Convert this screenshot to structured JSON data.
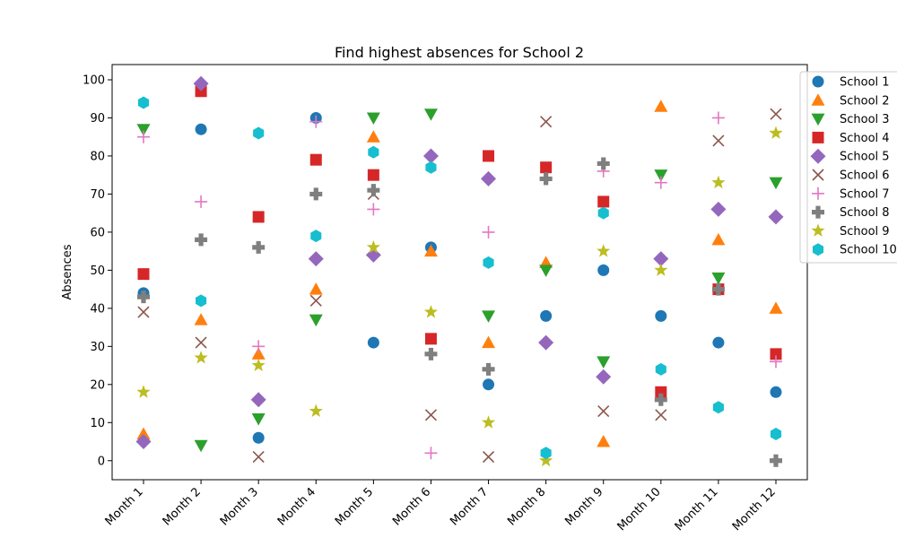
{
  "chart_data": {
    "type": "scatter",
    "title": "Find highest absences for School 2",
    "xlabel": "",
    "ylabel": "Absences",
    "ylim": [
      -5,
      104
    ],
    "yticks": [
      0,
      10,
      20,
      30,
      40,
      50,
      60,
      70,
      80,
      90,
      100
    ],
    "categories": [
      "Month 1",
      "Month 2",
      "Month 3",
      "Month 4",
      "Month 5",
      "Month 6",
      "Month 7",
      "Month 8",
      "Month 9",
      "Month 10",
      "Month 11",
      "Month 12"
    ],
    "grid": false,
    "legend_position": "upper-right-outside",
    "series": [
      {
        "name": "School 1",
        "color": "#1f77b4",
        "marker": "circle",
        "values": [
          44,
          87,
          6,
          90,
          31,
          56,
          20,
          38,
          50,
          38,
          31,
          18
        ]
      },
      {
        "name": "School 2",
        "color": "#ff7f0e",
        "marker": "triangle-up",
        "values": [
          7,
          37,
          28,
          45,
          85,
          55,
          31,
          52,
          5,
          93,
          58,
          40
        ]
      },
      {
        "name": "School 3",
        "color": "#2ca02c",
        "marker": "triangle-down",
        "values": [
          87,
          4,
          11,
          37,
          90,
          91,
          38,
          50,
          26,
          75,
          48,
          73
        ]
      },
      {
        "name": "School 4",
        "color": "#d62728",
        "marker": "square",
        "values": [
          49,
          97,
          64,
          79,
          75,
          32,
          80,
          77,
          68,
          18,
          45,
          28
        ]
      },
      {
        "name": "School 5",
        "color": "#9467bd",
        "marker": "diamond",
        "values": [
          5,
          99,
          16,
          53,
          54,
          80,
          74,
          31,
          22,
          53,
          66,
          64
        ]
      },
      {
        "name": "School 6",
        "color": "#8c564b",
        "marker": "x",
        "values": [
          39,
          31,
          1,
          42,
          70,
          12,
          1,
          89,
          13,
          12,
          84,
          91
        ]
      },
      {
        "name": "School 7",
        "color": "#e377c2",
        "marker": "plus",
        "values": [
          85,
          68,
          30,
          89,
          66,
          2,
          60,
          74,
          76,
          73,
          90,
          26
        ]
      },
      {
        "name": "School 8",
        "color": "#7f7f7f",
        "marker": "plus-filled",
        "values": [
          43,
          58,
          56,
          70,
          71,
          28,
          24,
          74,
          78,
          16,
          45,
          0
        ]
      },
      {
        "name": "School 9",
        "color": "#bcbd22",
        "marker": "star",
        "values": [
          18,
          27,
          25,
          13,
          56,
          39,
          10,
          0,
          55,
          50,
          73,
          86
        ]
      },
      {
        "name": "School 10",
        "color": "#17becf",
        "marker": "hexagon",
        "values": [
          94,
          42,
          86,
          59,
          81,
          77,
          52,
          2,
          65,
          24,
          14,
          7
        ]
      }
    ]
  }
}
